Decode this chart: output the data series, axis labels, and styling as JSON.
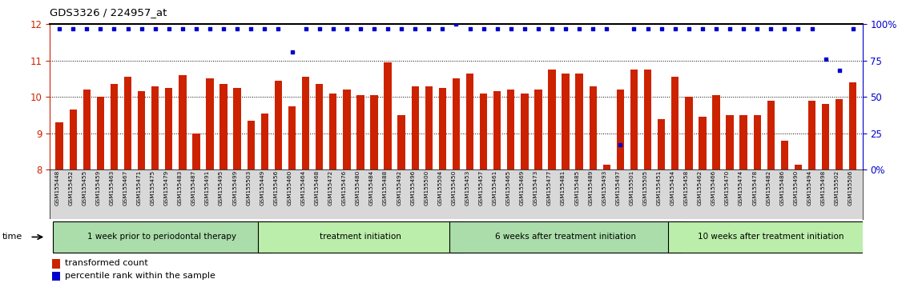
{
  "title": "GDS3326 / 224957_at",
  "samples": [
    "GSM155448",
    "GSM155452",
    "GSM155455",
    "GSM155459",
    "GSM155463",
    "GSM155467",
    "GSM155471",
    "GSM155475",
    "GSM155479",
    "GSM155483",
    "GSM155487",
    "GSM155491",
    "GSM155495",
    "GSM155499",
    "GSM155503",
    "GSM155449",
    "GSM155456",
    "GSM155460",
    "GSM155464",
    "GSM155468",
    "GSM155472",
    "GSM155476",
    "GSM155480",
    "GSM155484",
    "GSM155488",
    "GSM155492",
    "GSM155496",
    "GSM155500",
    "GSM155504",
    "GSM155450",
    "GSM155453",
    "GSM155457",
    "GSM155461",
    "GSM155465",
    "GSM155469",
    "GSM155473",
    "GSM155477",
    "GSM155481",
    "GSM155485",
    "GSM155489",
    "GSM155493",
    "GSM155497",
    "GSM155501",
    "GSM155505",
    "GSM155451",
    "GSM155454",
    "GSM155458",
    "GSM155462",
    "GSM155466",
    "GSM155470",
    "GSM155474",
    "GSM155478",
    "GSM155482",
    "GSM155486",
    "GSM155490",
    "GSM155494",
    "GSM155498",
    "GSM155502",
    "GSM155506"
  ],
  "red_values": [
    9.3,
    9.65,
    10.2,
    10.0,
    10.35,
    10.55,
    10.15,
    10.3,
    10.25,
    10.6,
    9.0,
    10.5,
    10.35,
    10.25,
    9.35,
    9.55,
    10.45,
    9.75,
    10.55,
    10.35,
    10.1,
    10.2,
    10.05,
    10.05,
    10.95,
    9.5,
    10.3,
    10.3,
    10.25,
    10.5,
    10.65,
    10.1,
    10.15,
    10.2,
    10.1,
    10.2,
    10.75,
    10.65,
    10.65,
    10.3,
    8.15,
    10.2,
    10.75,
    10.75,
    9.4,
    10.55,
    10.0,
    9.45,
    10.05,
    9.5,
    9.5,
    9.5,
    9.9,
    8.8,
    8.15,
    9.9,
    9.8,
    9.95,
    10.4
  ],
  "blue_values": [
    97,
    97,
    97,
    97,
    97,
    97,
    97,
    97,
    97,
    97,
    97,
    97,
    97,
    97,
    97,
    97,
    97,
    81,
    97,
    97,
    97,
    97,
    97,
    97,
    97,
    97,
    97,
    97,
    97,
    100,
    97,
    97,
    97,
    97,
    97,
    97,
    97,
    97,
    97,
    97,
    97,
    17,
    97,
    97,
    97,
    97,
    97,
    97,
    97,
    97,
    97,
    97,
    97,
    97,
    97,
    97,
    76,
    68,
    97
  ],
  "group_starts": [
    0,
    15,
    29,
    45
  ],
  "group_ends": [
    15,
    29,
    45,
    59
  ],
  "group_labels": [
    "1 week prior to periodontal therapy",
    "treatment initiation",
    "6 weeks after treatment initiation",
    "10 weeks after treatment initiation"
  ],
  "group_colors": [
    "#aaddaa",
    "#bbeeaa",
    "#aaddaa",
    "#bbeeaa"
  ],
  "ylim_left": [
    8,
    12
  ],
  "ylim_right": [
    0,
    100
  ],
  "yticks_left": [
    8,
    9,
    10,
    11,
    12
  ],
  "yticks_right": [
    0,
    25,
    50,
    75,
    100
  ],
  "ytick_right_labels": [
    "0%",
    "25",
    "50",
    "75",
    "100%"
  ],
  "bar_color": "#CC2200",
  "dot_color": "#0000CC",
  "bar_bottom": 8,
  "bg_xtick": "#d8d8d8",
  "legend_bar_label": "transformed count",
  "legend_dot_label": "percentile rank within the sample"
}
